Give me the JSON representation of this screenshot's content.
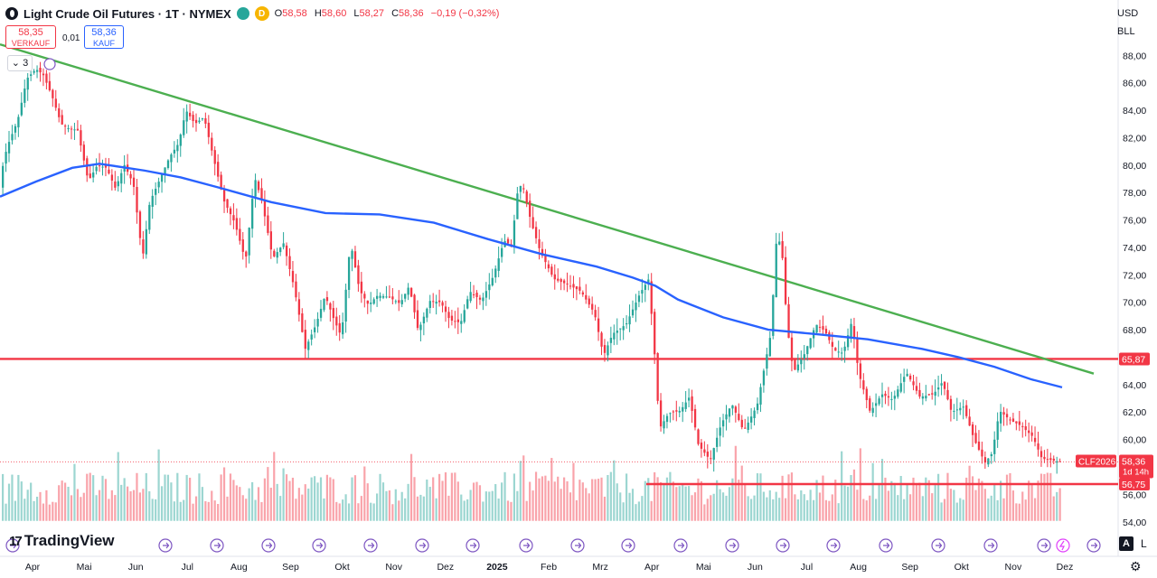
{
  "header": {
    "title": "Light Crude Oil Futures · 1T · NYMEX",
    "d_badge": "D",
    "ohlc": [
      {
        "k": "O",
        "v": "58,58"
      },
      {
        "k": "H",
        "v": "58,60"
      },
      {
        "k": "L",
        "v": "58,27"
      },
      {
        "k": "C",
        "v": "58,36"
      },
      {
        "k": "",
        "v": "−0,19 (−0,32%)"
      }
    ]
  },
  "trade": {
    "sell_price": "58,35",
    "sell_label": "VERKAUF",
    "spread": "0,01",
    "buy_price": "58,36",
    "buy_label": "KAUF"
  },
  "indicators_count": "3",
  "right_controls": {
    "currency": "USD",
    "unit": "BLL"
  },
  "brand": "TradingView",
  "auto_label": "A",
  "log_label": "L",
  "icons": [
    "chevron-down-icon",
    "eye-icon",
    "gear-icon",
    "event-arrow-icon",
    "lightning-icon"
  ],
  "colors": {
    "up": "#26a69a",
    "down": "#f23645",
    "sma": "#2962ff",
    "trendline": "#4caf50",
    "hline": "#f23645"
  },
  "chart_data": {
    "type": "candlestick",
    "title": "Light Crude Oil Futures · 1T · NYMEX",
    "y_axis": {
      "range": [
        52.8,
        89.4
      ],
      "ticks": [
        "88,00",
        "86,00",
        "84,00",
        "82,00",
        "80,00",
        "78,00",
        "76,00",
        "74,00",
        "72,00",
        "70,00",
        "68,00",
        "66,00",
        "64,00",
        "62,00",
        "60,00",
        "58,00",
        "56,00",
        "54,00"
      ]
    },
    "x_axis": {
      "labels": [
        "Apr",
        "Mai",
        "Jun",
        "Jul",
        "Aug",
        "Sep",
        "Okt",
        "Nov",
        "Dez",
        "2025",
        "Feb",
        "Mrz",
        "Apr",
        "Mai",
        "Jun",
        "Jul",
        "Aug",
        "Sep",
        "Okt",
        "Nov",
        "Dez"
      ],
      "bold": [
        "2025"
      ]
    },
    "price_path": [
      [
        0,
        78.3
      ],
      [
        10,
        81.3
      ],
      [
        22,
        83.3
      ],
      [
        32,
        86.3
      ],
      [
        42,
        87.0
      ],
      [
        50,
        86.6
      ],
      [
        60,
        85.0
      ],
      [
        70,
        83.0
      ],
      [
        80,
        82.6
      ],
      [
        88,
        82.6
      ],
      [
        100,
        78.8
      ],
      [
        110,
        80.0
      ],
      [
        120,
        79.8
      ],
      [
        130,
        78.3
      ],
      [
        140,
        80.0
      ],
      [
        150,
        78.6
      ],
      [
        160,
        73.2
      ],
      [
        168,
        77.3
      ],
      [
        178,
        78.8
      ],
      [
        190,
        80.6
      ],
      [
        200,
        81.6
      ],
      [
        208,
        84.0
      ],
      [
        218,
        83.0
      ],
      [
        228,
        83.5
      ],
      [
        240,
        80.1
      ],
      [
        250,
        77.4
      ],
      [
        262,
        75.8
      ],
      [
        274,
        73.0
      ],
      [
        284,
        79.1
      ],
      [
        292,
        77.4
      ],
      [
        304,
        73.2
      ],
      [
        316,
        74.3
      ],
      [
        328,
        71.0
      ],
      [
        340,
        66.6
      ],
      [
        352,
        68.4
      ],
      [
        362,
        70.5
      ],
      [
        372,
        68.7
      ],
      [
        380,
        67.5
      ],
      [
        390,
        74.4
      ],
      [
        400,
        70.9
      ],
      [
        410,
        69.8
      ],
      [
        420,
        70.5
      ],
      [
        432,
        70.4
      ],
      [
        445,
        69.9
      ],
      [
        455,
        71.2
      ],
      [
        465,
        67.9
      ],
      [
        478,
        70.1
      ],
      [
        490,
        70.0
      ],
      [
        500,
        68.7
      ],
      [
        512,
        68.5
      ],
      [
        522,
        70.8
      ],
      [
        535,
        70.1
      ],
      [
        548,
        71.9
      ],
      [
        560,
        74.5
      ],
      [
        568,
        74.1
      ],
      [
        575,
        78.1
      ],
      [
        580,
        78.7
      ],
      [
        590,
        75.8
      ],
      [
        600,
        73.7
      ],
      [
        615,
        71.7
      ],
      [
        630,
        71.3
      ],
      [
        645,
        70.8
      ],
      [
        660,
        69.2
      ],
      [
        670,
        66.1
      ],
      [
        680,
        67.7
      ],
      [
        695,
        68.4
      ],
      [
        710,
        70.6
      ],
      [
        720,
        71.7
      ],
      [
        726,
        66.7
      ],
      [
        732,
        60.8
      ],
      [
        742,
        61.9
      ],
      [
        755,
        62.1
      ],
      [
        765,
        63.1
      ],
      [
        775,
        59.6
      ],
      [
        788,
        58.5
      ],
      [
        800,
        61.1
      ],
      [
        812,
        62.6
      ],
      [
        825,
        60.6
      ],
      [
        840,
        62.5
      ],
      [
        855,
        67.7
      ],
      [
        862,
        75.3
      ],
      [
        868,
        73.2
      ],
      [
        873,
        68.3
      ],
      [
        880,
        64.9
      ],
      [
        892,
        66.2
      ],
      [
        905,
        68.4
      ],
      [
        915,
        67.9
      ],
      [
        925,
        66.5
      ],
      [
        935,
        66.3
      ],
      [
        945,
        68.7
      ],
      [
        952,
        64.9
      ],
      [
        965,
        62.0
      ],
      [
        978,
        63.3
      ],
      [
        990,
        62.9
      ],
      [
        1005,
        64.9
      ],
      [
        1020,
        63.1
      ],
      [
        1035,
        63.3
      ],
      [
        1045,
        64.2
      ],
      [
        1055,
        62.0
      ],
      [
        1068,
        62.4
      ],
      [
        1080,
        60.0
      ],
      [
        1092,
        58.3
      ],
      [
        1100,
        59.0
      ],
      [
        1108,
        62.1
      ],
      [
        1120,
        61.4
      ],
      [
        1132,
        61.0
      ],
      [
        1145,
        60.2
      ],
      [
        1155,
        58.6
      ],
      [
        1165,
        58.5
      ],
      [
        1172,
        58.4
      ],
      [
        1176,
        58.36
      ]
    ],
    "moving_average": {
      "color": "#2962ff",
      "points": [
        [
          0,
          77.7
        ],
        [
          40,
          78.8
        ],
        [
          80,
          79.8
        ],
        [
          110,
          80.1
        ],
        [
          160,
          79.6
        ],
        [
          200,
          79.1
        ],
        [
          240,
          78.4
        ],
        [
          300,
          77.3
        ],
        [
          360,
          76.5
        ],
        [
          420,
          76.4
        ],
        [
          480,
          75.8
        ],
        [
          540,
          74.6
        ],
        [
          600,
          73.5
        ],
        [
          660,
          72.6
        ],
        [
          700,
          71.8
        ],
        [
          725,
          71.2
        ],
        [
          750,
          70.2
        ],
        [
          800,
          68.9
        ],
        [
          850,
          68.0
        ],
        [
          900,
          67.7
        ],
        [
          960,
          67.3
        ],
        [
          1020,
          66.6
        ],
        [
          1060,
          66.0
        ],
        [
          1100,
          65.3
        ],
        [
          1140,
          64.4
        ],
        [
          1175,
          63.8
        ]
      ]
    },
    "trendline": {
      "from": [
        0,
        88.8
      ],
      "to": [
        1210,
        64.8
      ],
      "color": "#4caf50"
    },
    "horizontal_levels": [
      {
        "price": 65.87,
        "label": "65,87",
        "x_start": 0
      },
      {
        "price": 56.75,
        "label": "56,75",
        "x_start": 715
      }
    ],
    "last_price_label": {
      "symbol": "CLF2026",
      "price": "58,36",
      "countdown": "1d 14h"
    },
    "volume": {
      "max_price_equiv_top": 59.6,
      "baseline": 56.7
    }
  }
}
